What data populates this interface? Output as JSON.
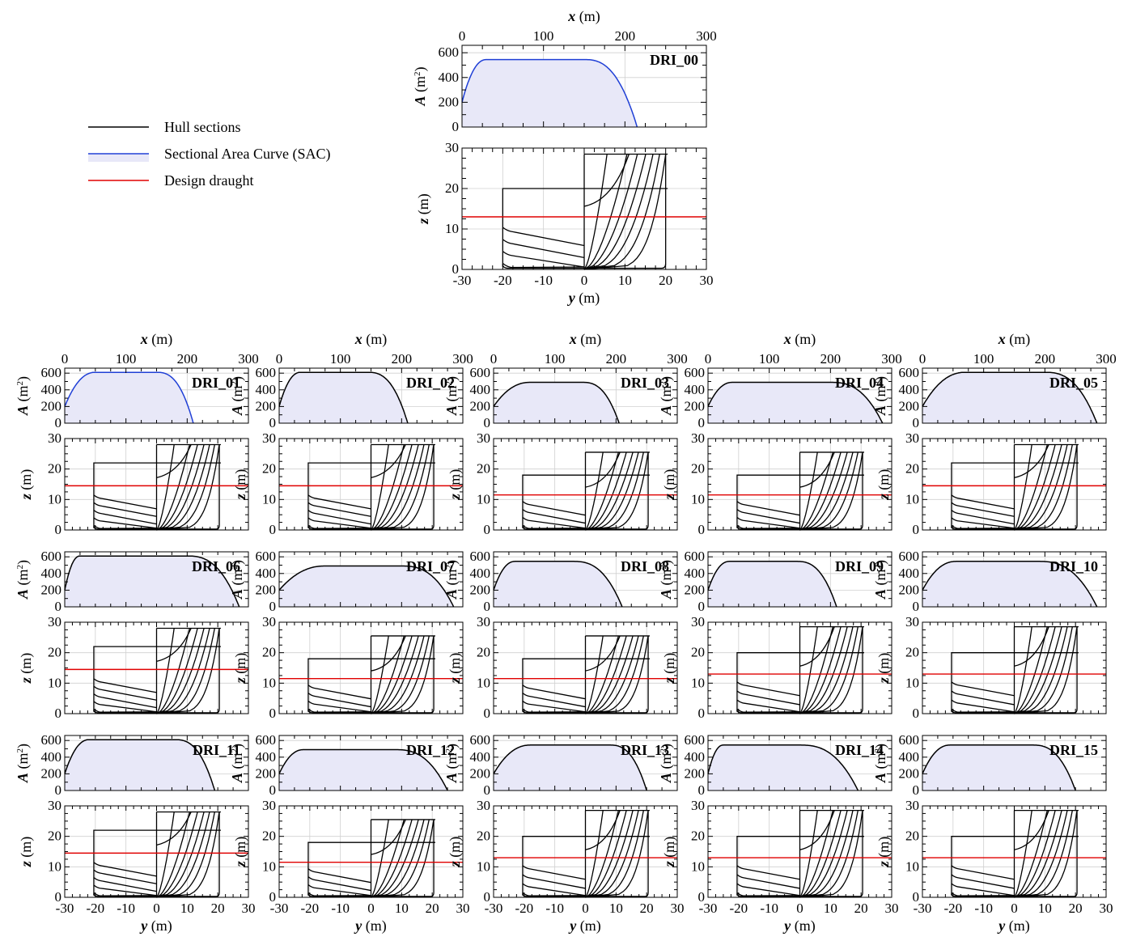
{
  "figure": {
    "legend": {
      "items": [
        {
          "label": "Hull sections",
          "color": "#000000"
        },
        {
          "label": "Sectional Area Curve (SAC)",
          "color": "#1f3fd6"
        },
        {
          "label": "Design draught",
          "color": "#e00000"
        }
      ]
    },
    "axis_labels": {
      "x_var": "x",
      "x_unit": "(m)",
      "y_var": "y",
      "y_unit": "(m)",
      "a_var": "A",
      "a_unit_open": "(m",
      "a_unit_sup": "2",
      "a_unit_close": ")",
      "z_var": "z",
      "z_unit": "(m)"
    },
    "ticks": {
      "sac_x": [
        "0",
        "100",
        "200",
        "300"
      ],
      "sac_a": [
        "0",
        "200",
        "400",
        "600"
      ],
      "sec_y": [
        "-30",
        "-20",
        "-10",
        "0",
        "10",
        "20",
        "30"
      ],
      "sec_z": [
        "0",
        "10",
        "20",
        "30"
      ]
    },
    "colors": {
      "sac_curve_main": "#1f3fd6",
      "sac_curve_other": "#000000",
      "sac_fill": "#e8e8f8",
      "draught": "#e00000",
      "grid": "#d0d0d0",
      "section_line": "#000000"
    }
  },
  "chart_data": [
    {
      "type": "area",
      "name": "DRI_00",
      "xlabel": "x (m)",
      "ylabel": "A (m²)",
      "xlim": [
        0,
        300
      ],
      "ylim": [
        0,
        660
      ],
      "sac": {
        "x0": 0,
        "a0": 200,
        "x1": 30,
        "amax": 545,
        "x2": 150,
        "x3": 215
      },
      "sections": {
        "half_breadth": 20,
        "deck_left": 20,
        "depth_right": 28.5,
        "draught": 13,
        "ylabel": "z (m)",
        "xlabel": "y (m)",
        "xlim": [
          -30,
          30
        ],
        "ylim": [
          0,
          30
        ]
      }
    },
    {
      "type": "area",
      "name": "DRI_01",
      "xlim": [
        0,
        300
      ],
      "ylim": [
        0,
        660
      ],
      "sac": {
        "x0": 0,
        "a0": 200,
        "x1": 50,
        "amax": 610,
        "x2": 150,
        "x3": 210
      },
      "sections": {
        "half_breadth": 20.5,
        "deck_left": 22,
        "depth_right": 28,
        "draught": 14.5,
        "xlim": [
          -30,
          30
        ],
        "ylim": [
          0,
          30
        ]
      }
    },
    {
      "type": "area",
      "name": "DRI_02",
      "xlim": [
        0,
        300
      ],
      "ylim": [
        0,
        660
      ],
      "sac": {
        "x0": 0,
        "a0": 200,
        "x1": 35,
        "amax": 610,
        "x2": 145,
        "x3": 210
      },
      "sections": {
        "half_breadth": 20.5,
        "deck_left": 22,
        "depth_right": 28,
        "draught": 14.5,
        "xlim": [
          -30,
          30
        ],
        "ylim": [
          0,
          30
        ]
      }
    },
    {
      "type": "area",
      "name": "DRI_03",
      "xlim": [
        0,
        300
      ],
      "ylim": [
        0,
        660
      ],
      "sac": {
        "x0": 0,
        "a0": 200,
        "x1": 60,
        "amax": 490,
        "x2": 145,
        "x3": 205
      },
      "sections": {
        "half_breadth": 20.5,
        "deck_left": 18,
        "depth_right": 25.5,
        "draught": 11.5,
        "xlim": [
          -30,
          30
        ],
        "ylim": [
          0,
          30
        ]
      }
    },
    {
      "type": "area",
      "name": "DRI_04",
      "xlim": [
        0,
        300
      ],
      "ylim": [
        0,
        660
      ],
      "sac": {
        "x0": 0,
        "a0": 200,
        "x1": 40,
        "amax": 490,
        "x2": 200,
        "x3": 285
      },
      "sections": {
        "half_breadth": 20.5,
        "deck_left": 18,
        "depth_right": 25.5,
        "draught": 11.5,
        "xlim": [
          -30,
          30
        ],
        "ylim": [
          0,
          30
        ]
      }
    },
    {
      "type": "area",
      "name": "DRI_05",
      "xlim": [
        0,
        300
      ],
      "ylim": [
        0,
        660
      ],
      "sac": {
        "x0": 0,
        "a0": 200,
        "x1": 70,
        "amax": 610,
        "x2": 200,
        "x3": 285
      },
      "sections": {
        "half_breadth": 20.5,
        "deck_left": 22,
        "depth_right": 28,
        "draught": 14.5,
        "xlim": [
          -30,
          30
        ],
        "ylim": [
          0,
          30
        ]
      }
    },
    {
      "type": "area",
      "name": "DRI_06",
      "xlim": [
        0,
        300
      ],
      "ylim": [
        0,
        660
      ],
      "sac": {
        "x0": 0,
        "a0": 200,
        "x1": 25,
        "amax": 610,
        "x2": 200,
        "x3": 285
      },
      "sections": {
        "half_breadth": 20.5,
        "deck_left": 22,
        "depth_right": 28,
        "draught": 14.5,
        "xlim": [
          -30,
          30
        ],
        "ylim": [
          0,
          30
        ]
      }
    },
    {
      "type": "area",
      "name": "DRI_07",
      "xlim": [
        0,
        300
      ],
      "ylim": [
        0,
        660
      ],
      "sac": {
        "x0": 0,
        "a0": 200,
        "x1": 75,
        "amax": 490,
        "x2": 200,
        "x3": 285
      },
      "sections": {
        "half_breadth": 20.5,
        "deck_left": 18,
        "depth_right": 25.5,
        "draught": 11.5,
        "xlim": [
          -30,
          30
        ],
        "ylim": [
          0,
          30
        ]
      }
    },
    {
      "type": "area",
      "name": "DRI_08",
      "xlim": [
        0,
        300
      ],
      "ylim": [
        0,
        660
      ],
      "sac": {
        "x0": 0,
        "a0": 200,
        "x1": 35,
        "amax": 545,
        "x2": 130,
        "x3": 210
      },
      "sections": {
        "half_breadth": 20.5,
        "deck_left": 18,
        "depth_right": 25.5,
        "draught": 11.5,
        "xlim": [
          -30,
          30
        ],
        "ylim": [
          0,
          30
        ]
      }
    },
    {
      "type": "area",
      "name": "DRI_09",
      "xlim": [
        0,
        300
      ],
      "ylim": [
        0,
        660
      ],
      "sac": {
        "x0": 0,
        "a0": 200,
        "x1": 35,
        "amax": 545,
        "x2": 145,
        "x3": 210
      },
      "sections": {
        "half_breadth": 20.5,
        "deck_left": 20,
        "depth_right": 28.5,
        "draught": 13,
        "xlim": [
          -30,
          30
        ],
        "ylim": [
          0,
          30
        ]
      }
    },
    {
      "type": "area",
      "name": "DRI_10",
      "xlim": [
        0,
        300
      ],
      "ylim": [
        0,
        660
      ],
      "sac": {
        "x0": 0,
        "a0": 200,
        "x1": 55,
        "amax": 545,
        "x2": 190,
        "x3": 285
      },
      "sections": {
        "half_breadth": 20.5,
        "deck_left": 20,
        "depth_right": 28.5,
        "draught": 13,
        "xlim": [
          -30,
          30
        ],
        "ylim": [
          0,
          30
        ]
      }
    },
    {
      "type": "area",
      "name": "DRI_11",
      "xlim": [
        0,
        300
      ],
      "ylim": [
        0,
        660
      ],
      "sac": {
        "x0": 0,
        "a0": 200,
        "x1": 40,
        "amax": 610,
        "x2": 180,
        "x3": 245
      },
      "sections": {
        "half_breadth": 20.5,
        "deck_left": 22,
        "depth_right": 28,
        "draught": 14.5,
        "xlim": [
          -30,
          30
        ],
        "ylim": [
          0,
          30
        ]
      }
    },
    {
      "type": "area",
      "name": "DRI_12",
      "xlim": [
        0,
        300
      ],
      "ylim": [
        0,
        660
      ],
      "sac": {
        "x0": 0,
        "a0": 200,
        "x1": 40,
        "amax": 490,
        "x2": 190,
        "x3": 275
      },
      "sections": {
        "half_breadth": 20.5,
        "deck_left": 18,
        "depth_right": 25.5,
        "draught": 11.5,
        "xlim": [
          -30,
          30
        ],
        "ylim": [
          0,
          30
        ]
      }
    },
    {
      "type": "area",
      "name": "DRI_13",
      "xlim": [
        0,
        300
      ],
      "ylim": [
        0,
        660
      ],
      "sac": {
        "x0": 0,
        "a0": 200,
        "x1": 60,
        "amax": 545,
        "x2": 190,
        "x3": 250
      },
      "sections": {
        "half_breadth": 20.5,
        "deck_left": 20,
        "depth_right": 28.5,
        "draught": 13,
        "xlim": [
          -30,
          30
        ],
        "ylim": [
          0,
          30
        ]
      }
    },
    {
      "type": "area",
      "name": "DRI_14",
      "xlim": [
        0,
        300
      ],
      "ylim": [
        0,
        660
      ],
      "sac": {
        "x0": 0,
        "a0": 200,
        "x1": 25,
        "amax": 545,
        "x2": 150,
        "x3": 245
      },
      "sections": {
        "half_breadth": 20.5,
        "deck_left": 20,
        "depth_right": 28.5,
        "draught": 13,
        "xlim": [
          -30,
          30
        ],
        "ylim": [
          0,
          30
        ]
      }
    },
    {
      "type": "area",
      "name": "DRI_15",
      "xlim": [
        0,
        300
      ],
      "ylim": [
        0,
        660
      ],
      "sac": {
        "x0": 0,
        "a0": 200,
        "x1": 45,
        "amax": 545,
        "x2": 180,
        "x3": 250
      },
      "sections": {
        "half_breadth": 20.5,
        "deck_left": 20,
        "depth_right": 28.5,
        "draught": 13,
        "xlim": [
          -30,
          30
        ],
        "ylim": [
          0,
          30
        ]
      }
    }
  ]
}
